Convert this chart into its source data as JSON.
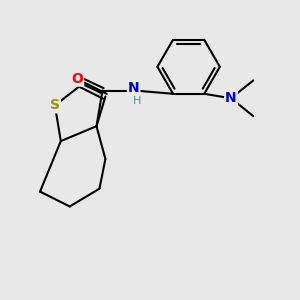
{
  "background_color": "#e8e8e8",
  "bond_color": "#000000",
  "bond_width": 1.5,
  "atom_colors": {
    "O": "#ff0000",
    "N": "#0000cd",
    "S": "#999900",
    "H": "#4a9090"
  }
}
